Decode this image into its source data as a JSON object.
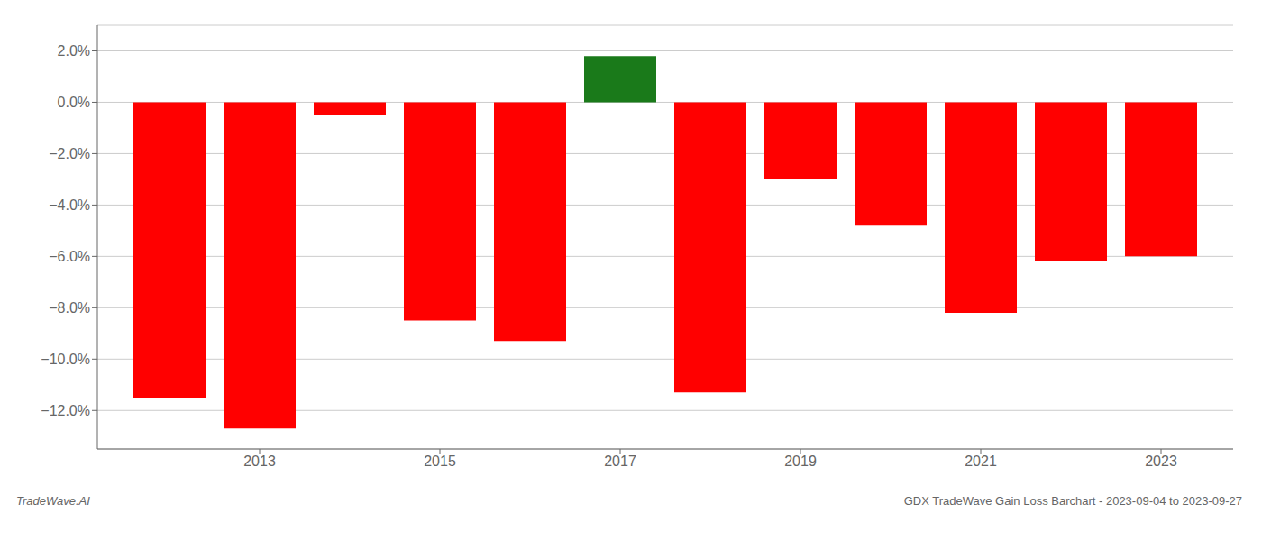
{
  "chart_data": {
    "type": "bar",
    "x": [
      2012,
      2013,
      2014,
      2015,
      2016,
      2017,
      2018,
      2019,
      2020,
      2021,
      2022,
      2023
    ],
    "values": [
      -0.115,
      -0.127,
      -0.005,
      -0.085,
      -0.093,
      0.018,
      -0.113,
      -0.03,
      -0.048,
      -0.082,
      -0.062,
      -0.06
    ],
    "colors": [
      "#ff0000",
      "#ff0000",
      "#ff0000",
      "#ff0000",
      "#ff0000",
      "#1a7a1a",
      "#ff0000",
      "#ff0000",
      "#ff0000",
      "#ff0000",
      "#ff0000",
      "#ff0000"
    ],
    "xlim": [
      2011.2,
      2023.8
    ],
    "xticks": [
      2013,
      2015,
      2017,
      2019,
      2021,
      2023
    ],
    "ylim": [
      -0.135,
      0.03
    ],
    "yticks": [
      {
        "value": -0.12,
        "label": "−12.0%"
      },
      {
        "value": -0.1,
        "label": "−10.0%"
      },
      {
        "value": -0.08,
        "label": "−8.0%"
      },
      {
        "value": -0.06,
        "label": "−6.0%"
      },
      {
        "value": -0.04,
        "label": "−4.0%"
      },
      {
        "value": -0.02,
        "label": "−2.0%"
      },
      {
        "value": 0.0,
        "label": "0.0%"
      },
      {
        "value": 0.02,
        "label": "2.0%"
      }
    ],
    "grid": true,
    "annotations": [
      "TradeWave.AI",
      "GDX TradeWave Gain Loss Barchart - 2023-09-04 to 2023-09-27"
    ]
  }
}
